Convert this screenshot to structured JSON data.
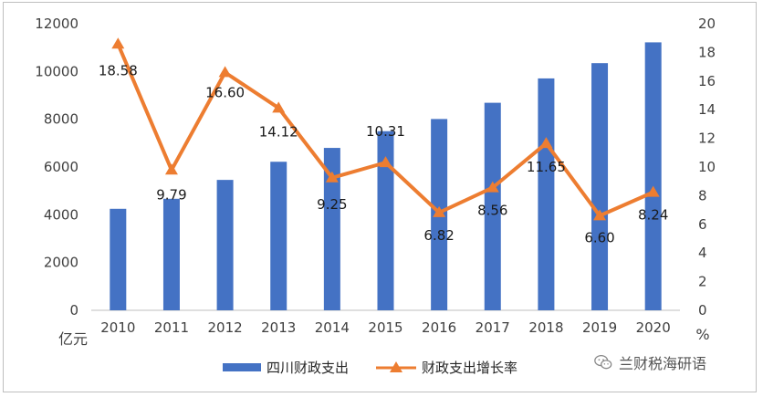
{
  "chart_data": {
    "type": "bar+line",
    "categories": [
      "2010",
      "2011",
      "2012",
      "2013",
      "2014",
      "2015",
      "2016",
      "2017",
      "2018",
      "2019",
      "2020"
    ],
    "series": [
      {
        "name": "四川财政支出",
        "type": "bar",
        "axis": "left",
        "color": "#4472C4",
        "values": [
          4250,
          4670,
          5460,
          6220,
          6800,
          7500,
          8010,
          8690,
          9710,
          10350,
          11220
        ]
      },
      {
        "name": "财政支出增长率",
        "type": "line",
        "axis": "right",
        "color": "#ED7D31",
        "marker": "triangle",
        "values": [
          18.58,
          9.79,
          16.6,
          14.12,
          9.25,
          10.31,
          6.82,
          8.56,
          11.65,
          6.6,
          8.24
        ],
        "labels": [
          "18.58",
          "9.79",
          "16.60",
          "14.12",
          "9.25",
          "10.31",
          "6.82",
          "8.56",
          "11.65",
          "6.60",
          "8.24"
        ]
      }
    ],
    "y_left": {
      "min": 0,
      "max": 12000,
      "ticks": [
        "0",
        "2000",
        "4000",
        "6000",
        "8000",
        "10000",
        "12000"
      ],
      "unit": "亿元"
    },
    "y_right": {
      "min": 0,
      "max": 20,
      "ticks": [
        "0",
        "2",
        "4",
        "6",
        "8",
        "10",
        "12",
        "14",
        "16",
        "18",
        "20"
      ],
      "unit": "%"
    },
    "grid": false,
    "legend_position": "bottom"
  },
  "watermark": {
    "text": "兰财税海研语",
    "icon": "wechat-icon"
  }
}
